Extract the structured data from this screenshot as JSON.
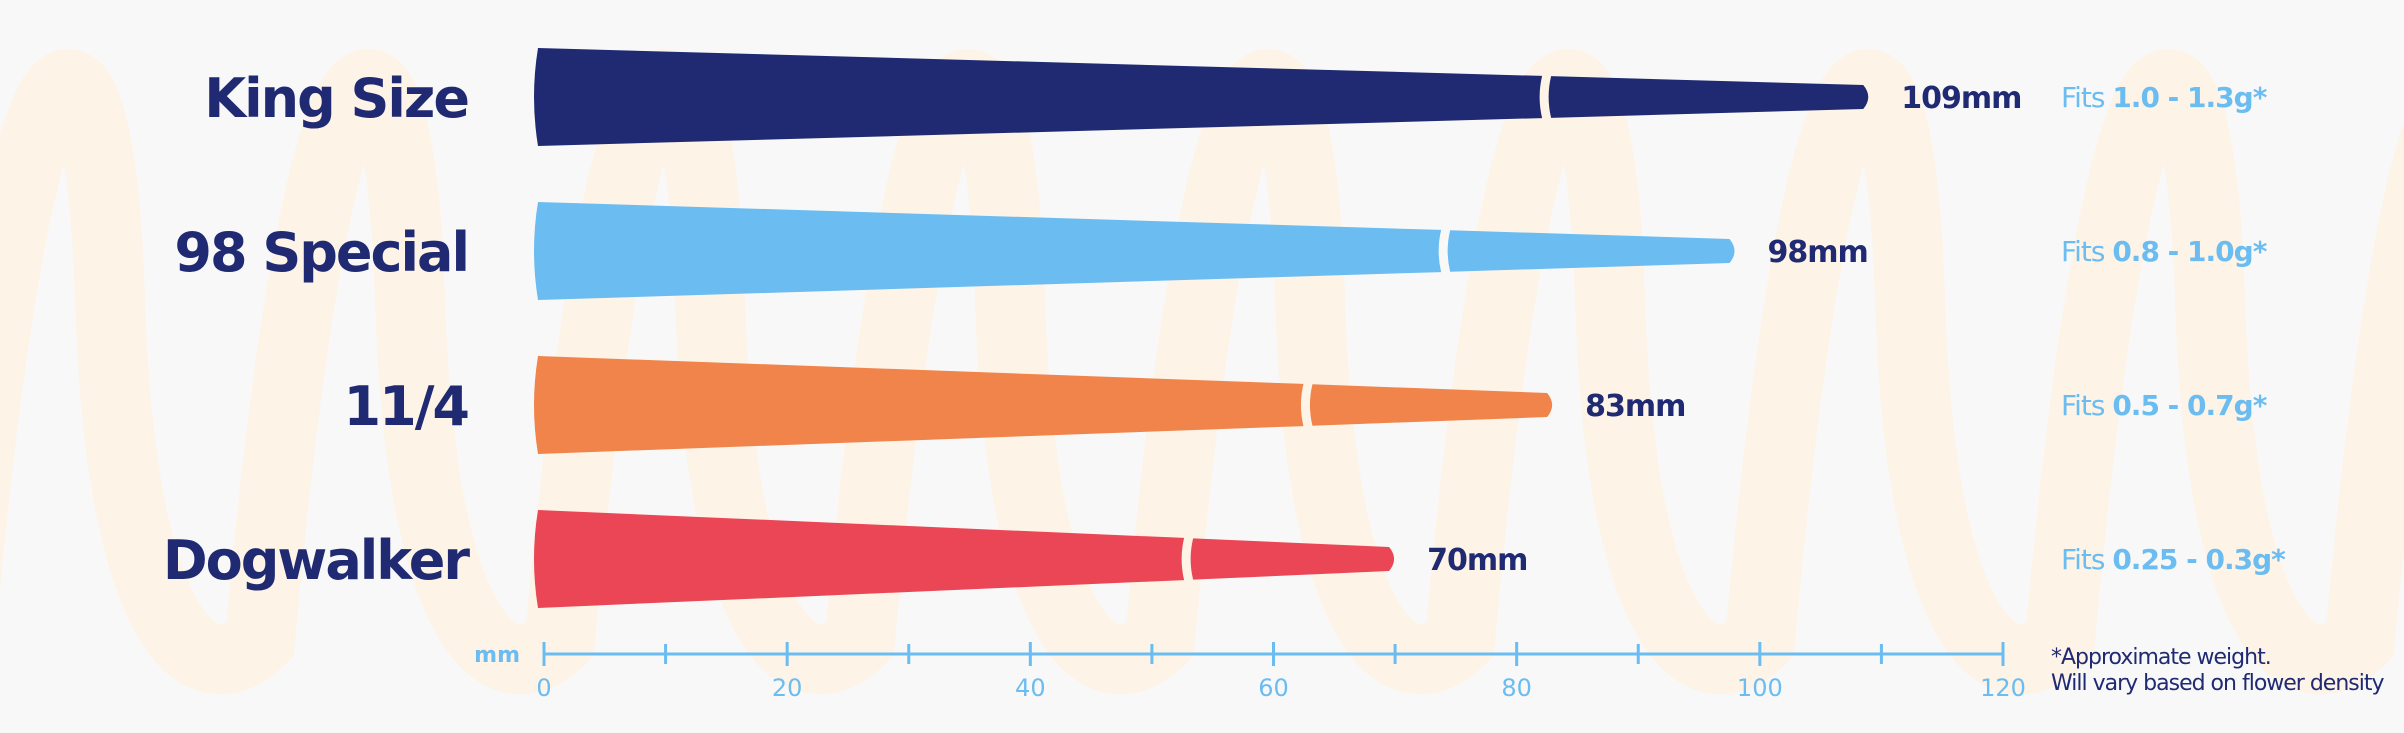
{
  "colors": {
    "background": "#f8f8f8",
    "navy": "#1f2a72",
    "sky": "#6bbcf0",
    "axis": "#6bbcf0",
    "watermark": "#fdf3e7",
    "filter_gap": "#f8f8f8"
  },
  "chart_data": {
    "type": "bar",
    "orientation": "horizontal",
    "bar_shape": "cone",
    "categories": [
      "King Size",
      "98 Special",
      "11/4",
      "Dogwalker"
    ],
    "values": [
      109,
      98,
      83,
      70
    ],
    "value_labels": [
      "109mm",
      "98mm",
      "83mm",
      "70mm"
    ],
    "colors": [
      "#1f2a72",
      "#6bbcf0",
      "#f0844a",
      "#ea4655"
    ],
    "fits": [
      {
        "prefix": "Fits ",
        "range": "1.0 - 1.3g*"
      },
      {
        "prefix": "Fits ",
        "range": "0.8 - 1.0g*"
      },
      {
        "prefix": "Fits ",
        "range": "0.5 - 0.7g*"
      },
      {
        "prefix": "Fits ",
        "range": "0.25 - 0.3g*"
      }
    ],
    "xlabel": "mm",
    "xlim": [
      0,
      120
    ],
    "x_major_ticks": [
      0,
      20,
      40,
      60,
      80,
      100,
      120
    ],
    "x_minor_ticks": [
      10,
      30,
      50,
      70,
      90,
      110
    ],
    "grid": false,
    "legend": "none",
    "footnote": [
      "*Approximate weight.",
      "Will vary based on flower density"
    ]
  }
}
